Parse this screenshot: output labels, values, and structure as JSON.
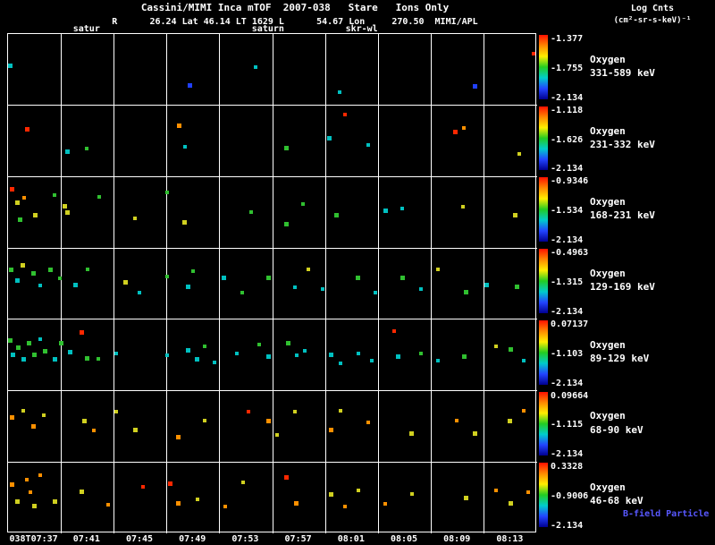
{
  "header": {
    "title": "Cassini/MIMI Inca mTOF  2007-038   Stare   Ions Only",
    "subtitle": "R      26.24 Lat 46.14 LT 1629 L      54.67 Lon     270.50  MIMI/APL",
    "legend_title": "Log Cnts",
    "legend_units": "(cm²-sr-s-keV)⁻¹"
  },
  "annotations": [
    {
      "label": "satur",
      "x": 0.15
    },
    {
      "label": "saturn",
      "x": 0.493
    },
    {
      "label": "skr-wl",
      "x": 0.67
    }
  ],
  "footer": {
    "bfield_label": "B-field Particle Flow",
    "bfield_color": "#5858ff"
  },
  "chart_data": {
    "type": "scatter",
    "title": "Cassini/MIMI Inca mTOF 2007-038 Stare Ions Only",
    "ylabel_units": "Log Cnts (cm²-sr-s-keV)⁻¹",
    "x_ticks": [
      "038T07:37",
      "07:41",
      "07:45",
      "07:49",
      "07:53",
      "07:57",
      "08:01",
      "08:05",
      "08:09",
      "08:13"
    ],
    "grid": true,
    "colorbar_stops": [
      "#ff1000",
      "#ff8800",
      "#ffee00",
      "#22cc22",
      "#00cccc",
      "#2244ff",
      "#000090"
    ],
    "point_palette": [
      "#2040ff",
      "#00c0c0",
      "#30c030",
      "#d0d020",
      "#ff9000",
      "#ff2800"
    ],
    "rows": [
      {
        "species": "Oxygen",
        "energy": "331-589 keV",
        "cbar": {
          "top": "-1.377",
          "mid": "-1.755",
          "bottom": "-2.134"
        },
        "points": [
          [
            0.004,
            0.44,
            1,
            5
          ],
          [
            0.343,
            0.72,
            0,
            5
          ],
          [
            0.468,
            0.47,
            1,
            4
          ],
          [
            0.627,
            0.82,
            1,
            4
          ],
          [
            0.882,
            0.74,
            0,
            5
          ],
          [
            0.997,
            0.27,
            5,
            4
          ]
        ]
      },
      {
        "species": "Oxygen",
        "energy": "231-332 keV",
        "cbar": {
          "top": "-1.118",
          "mid": "-1.626",
          "bottom": "-2.134"
        },
        "points": [
          [
            0.037,
            0.33,
            5,
            5
          ],
          [
            0.112,
            0.65,
            1,
            5
          ],
          [
            0.148,
            0.6,
            2,
            4
          ],
          [
            0.323,
            0.28,
            4,
            5
          ],
          [
            0.334,
            0.58,
            1,
            4
          ],
          [
            0.527,
            0.6,
            2,
            5
          ],
          [
            0.607,
            0.46,
            1,
            5
          ],
          [
            0.637,
            0.13,
            5,
            4
          ],
          [
            0.68,
            0.55,
            1,
            4
          ],
          [
            0.845,
            0.37,
            5,
            5
          ],
          [
            0.862,
            0.32,
            4,
            4
          ],
          [
            0.967,
            0.68,
            3,
            4
          ]
        ]
      },
      {
        "species": "Oxygen",
        "energy": "168-231 keV",
        "cbar": {
          "top": "-0.9346",
          "mid": "-1.534",
          "bottom": "-2.134"
        },
        "points": [
          [
            0.008,
            0.18,
            5,
            5
          ],
          [
            0.018,
            0.36,
            3,
            5
          ],
          [
            0.03,
            0.3,
            4,
            4
          ],
          [
            0.022,
            0.6,
            2,
            5
          ],
          [
            0.052,
            0.54,
            3,
            5
          ],
          [
            0.088,
            0.26,
            2,
            4
          ],
          [
            0.108,
            0.42,
            3,
            5
          ],
          [
            0.112,
            0.5,
            3,
            5
          ],
          [
            0.172,
            0.28,
            2,
            4
          ],
          [
            0.24,
            0.58,
            3,
            4
          ],
          [
            0.3,
            0.22,
            2,
            4
          ],
          [
            0.333,
            0.64,
            3,
            5
          ],
          [
            0.46,
            0.5,
            2,
            4
          ],
          [
            0.527,
            0.66,
            2,
            5
          ],
          [
            0.558,
            0.38,
            2,
            4
          ],
          [
            0.62,
            0.54,
            2,
            5
          ],
          [
            0.713,
            0.48,
            1,
            5
          ],
          [
            0.745,
            0.44,
            1,
            4
          ],
          [
            0.86,
            0.42,
            3,
            4
          ],
          [
            0.958,
            0.54,
            3,
            5
          ]
        ]
      },
      {
        "species": "Oxygen",
        "energy": "129-169 keV",
        "cbar": {
          "top": "-0.4963",
          "mid": "-1.315",
          "bottom": "-2.134"
        },
        "points": [
          [
            0.006,
            0.3,
            2,
            5
          ],
          [
            0.017,
            0.46,
            1,
            5
          ],
          [
            0.028,
            0.24,
            3,
            5
          ],
          [
            0.048,
            0.36,
            2,
            5
          ],
          [
            0.06,
            0.52,
            1,
            4
          ],
          [
            0.08,
            0.3,
            2,
            5
          ],
          [
            0.098,
            0.43,
            2,
            4
          ],
          [
            0.128,
            0.52,
            1,
            5
          ],
          [
            0.15,
            0.3,
            2,
            4
          ],
          [
            0.222,
            0.48,
            3,
            5
          ],
          [
            0.248,
            0.62,
            1,
            4
          ],
          [
            0.3,
            0.4,
            2,
            4
          ],
          [
            0.34,
            0.55,
            1,
            5
          ],
          [
            0.35,
            0.32,
            2,
            4
          ],
          [
            0.408,
            0.42,
            1,
            5
          ],
          [
            0.442,
            0.62,
            2,
            4
          ],
          [
            0.492,
            0.42,
            2,
            5
          ],
          [
            0.543,
            0.55,
            1,
            4
          ],
          [
            0.568,
            0.3,
            3,
            4
          ],
          [
            0.594,
            0.58,
            1,
            4
          ],
          [
            0.662,
            0.42,
            2,
            5
          ],
          [
            0.695,
            0.62,
            1,
            4
          ],
          [
            0.745,
            0.42,
            2,
            5
          ],
          [
            0.78,
            0.58,
            1,
            4
          ],
          [
            0.812,
            0.3,
            3,
            4
          ],
          [
            0.865,
            0.62,
            2,
            5
          ],
          [
            0.905,
            0.52,
            1,
            5
          ],
          [
            0.962,
            0.55,
            2,
            5
          ]
        ]
      },
      {
        "species": "Oxygen",
        "energy": "89-129 keV",
        "cbar": {
          "top": "0.07137",
          "mid": "-1.103",
          "bottom": "-2.134"
        },
        "points": [
          [
            0.003,
            0.3,
            2,
            5
          ],
          [
            0.01,
            0.5,
            1,
            5
          ],
          [
            0.02,
            0.4,
            2,
            5
          ],
          [
            0.03,
            0.56,
            1,
            5
          ],
          [
            0.04,
            0.34,
            2,
            5
          ],
          [
            0.05,
            0.5,
            2,
            5
          ],
          [
            0.06,
            0.28,
            1,
            4
          ],
          [
            0.07,
            0.45,
            2,
            5
          ],
          [
            0.088,
            0.56,
            1,
            5
          ],
          [
            0.1,
            0.34,
            2,
            5
          ],
          [
            0.118,
            0.46,
            1,
            5
          ],
          [
            0.139,
            0.18,
            5,
            5
          ],
          [
            0.15,
            0.55,
            2,
            5
          ],
          [
            0.17,
            0.55,
            2,
            4
          ],
          [
            0.205,
            0.48,
            1,
            4
          ],
          [
            0.3,
            0.5,
            1,
            4
          ],
          [
            0.34,
            0.44,
            1,
            5
          ],
          [
            0.358,
            0.56,
            1,
            5
          ],
          [
            0.372,
            0.38,
            2,
            4
          ],
          [
            0.39,
            0.6,
            1,
            4
          ],
          [
            0.432,
            0.48,
            1,
            4
          ],
          [
            0.475,
            0.35,
            2,
            4
          ],
          [
            0.492,
            0.52,
            1,
            5
          ],
          [
            0.53,
            0.33,
            2,
            5
          ],
          [
            0.545,
            0.5,
            1,
            4
          ],
          [
            0.56,
            0.44,
            1,
            4
          ],
          [
            0.61,
            0.5,
            1,
            5
          ],
          [
            0.628,
            0.62,
            1,
            4
          ],
          [
            0.662,
            0.48,
            1,
            4
          ],
          [
            0.688,
            0.58,
            1,
            4
          ],
          [
            0.73,
            0.17,
            5,
            4
          ],
          [
            0.738,
            0.52,
            1,
            5
          ],
          [
            0.78,
            0.48,
            2,
            4
          ],
          [
            0.812,
            0.58,
            1,
            4
          ],
          [
            0.862,
            0.52,
            2,
            5
          ],
          [
            0.922,
            0.38,
            3,
            4
          ],
          [
            0.95,
            0.42,
            2,
            5
          ],
          [
            0.975,
            0.58,
            1,
            4
          ]
        ]
      },
      {
        "species": "Oxygen",
        "energy": "68-90 keV",
        "cbar": {
          "top": "0.09664",
          "mid": "-1.115",
          "bottom": "-2.134"
        },
        "points": [
          [
            0.008,
            0.38,
            4,
            5
          ],
          [
            0.028,
            0.28,
            3,
            4
          ],
          [
            0.048,
            0.5,
            4,
            5
          ],
          [
            0.068,
            0.34,
            3,
            4
          ],
          [
            0.145,
            0.42,
            3,
            5
          ],
          [
            0.163,
            0.56,
            4,
            4
          ],
          [
            0.205,
            0.3,
            3,
            4
          ],
          [
            0.24,
            0.55,
            3,
            5
          ],
          [
            0.322,
            0.65,
            4,
            5
          ],
          [
            0.372,
            0.42,
            3,
            4
          ],
          [
            0.455,
            0.3,
            5,
            4
          ],
          [
            0.492,
            0.42,
            4,
            5
          ],
          [
            0.508,
            0.62,
            3,
            4
          ],
          [
            0.543,
            0.3,
            3,
            4
          ],
          [
            0.61,
            0.55,
            4,
            5
          ],
          [
            0.628,
            0.28,
            3,
            4
          ],
          [
            0.68,
            0.45,
            4,
            4
          ],
          [
            0.762,
            0.6,
            3,
            5
          ],
          [
            0.848,
            0.42,
            4,
            4
          ],
          [
            0.882,
            0.6,
            3,
            5
          ],
          [
            0.948,
            0.42,
            3,
            5
          ],
          [
            0.975,
            0.28,
            4,
            4
          ]
        ]
      },
      {
        "species": "Oxygen",
        "energy": "46-68 keV",
        "cbar": {
          "top": "0.3328",
          "mid": "-0.9006",
          "bottom": "-2.134"
        },
        "points": [
          [
            0.008,
            0.32,
            4,
            5
          ],
          [
            0.018,
            0.55,
            3,
            5
          ],
          [
            0.035,
            0.25,
            4,
            4
          ],
          [
            0.042,
            0.42,
            4,
            4
          ],
          [
            0.05,
            0.62,
            3,
            5
          ],
          [
            0.06,
            0.18,
            4,
            4
          ],
          [
            0.088,
            0.55,
            3,
            5
          ],
          [
            0.139,
            0.42,
            3,
            5
          ],
          [
            0.19,
            0.6,
            4,
            4
          ],
          [
            0.255,
            0.35,
            5,
            4
          ],
          [
            0.307,
            0.3,
            5,
            5
          ],
          [
            0.322,
            0.58,
            4,
            5
          ],
          [
            0.358,
            0.52,
            3,
            4
          ],
          [
            0.41,
            0.62,
            4,
            4
          ],
          [
            0.445,
            0.28,
            3,
            4
          ],
          [
            0.527,
            0.22,
            5,
            5
          ],
          [
            0.545,
            0.58,
            4,
            5
          ],
          [
            0.61,
            0.45,
            3,
            5
          ],
          [
            0.637,
            0.62,
            4,
            4
          ],
          [
            0.662,
            0.4,
            3,
            4
          ],
          [
            0.712,
            0.58,
            4,
            4
          ],
          [
            0.763,
            0.45,
            3,
            4
          ],
          [
            0.865,
            0.5,
            3,
            5
          ],
          [
            0.922,
            0.4,
            4,
            4
          ],
          [
            0.95,
            0.58,
            3,
            5
          ],
          [
            0.983,
            0.42,
            4,
            4
          ]
        ]
      }
    ]
  }
}
